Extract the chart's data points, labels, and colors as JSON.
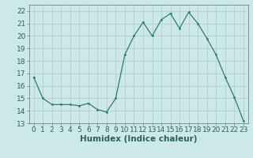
{
  "x": [
    0,
    1,
    2,
    3,
    4,
    5,
    6,
    7,
    8,
    9,
    10,
    11,
    12,
    13,
    14,
    15,
    16,
    17,
    18,
    19,
    20,
    21,
    22,
    23
  ],
  "y": [
    16.7,
    15.0,
    14.5,
    14.5,
    14.5,
    14.4,
    14.6,
    14.1,
    13.9,
    15.0,
    18.5,
    20.0,
    21.1,
    20.0,
    21.3,
    21.8,
    20.6,
    21.9,
    21.0,
    19.8,
    18.5,
    16.7,
    15.1,
    13.2
  ],
  "line_color": "#2e7d6e",
  "marker_color": "#2e7d6e",
  "bg_color": "#cce8e8",
  "grid_color": "#aacccc",
  "xlabel": "Humidex (Indice chaleur)",
  "ylim": [
    13,
    22.5
  ],
  "xlim": [
    -0.5,
    23.5
  ],
  "yticks": [
    13,
    14,
    15,
    16,
    17,
    18,
    19,
    20,
    21,
    22
  ],
  "xticks": [
    0,
    1,
    2,
    3,
    4,
    5,
    6,
    7,
    8,
    9,
    10,
    11,
    12,
    13,
    14,
    15,
    16,
    17,
    18,
    19,
    20,
    21,
    22,
    23
  ],
  "xlabel_fontsize": 7.5,
  "tick_fontsize": 6.5
}
